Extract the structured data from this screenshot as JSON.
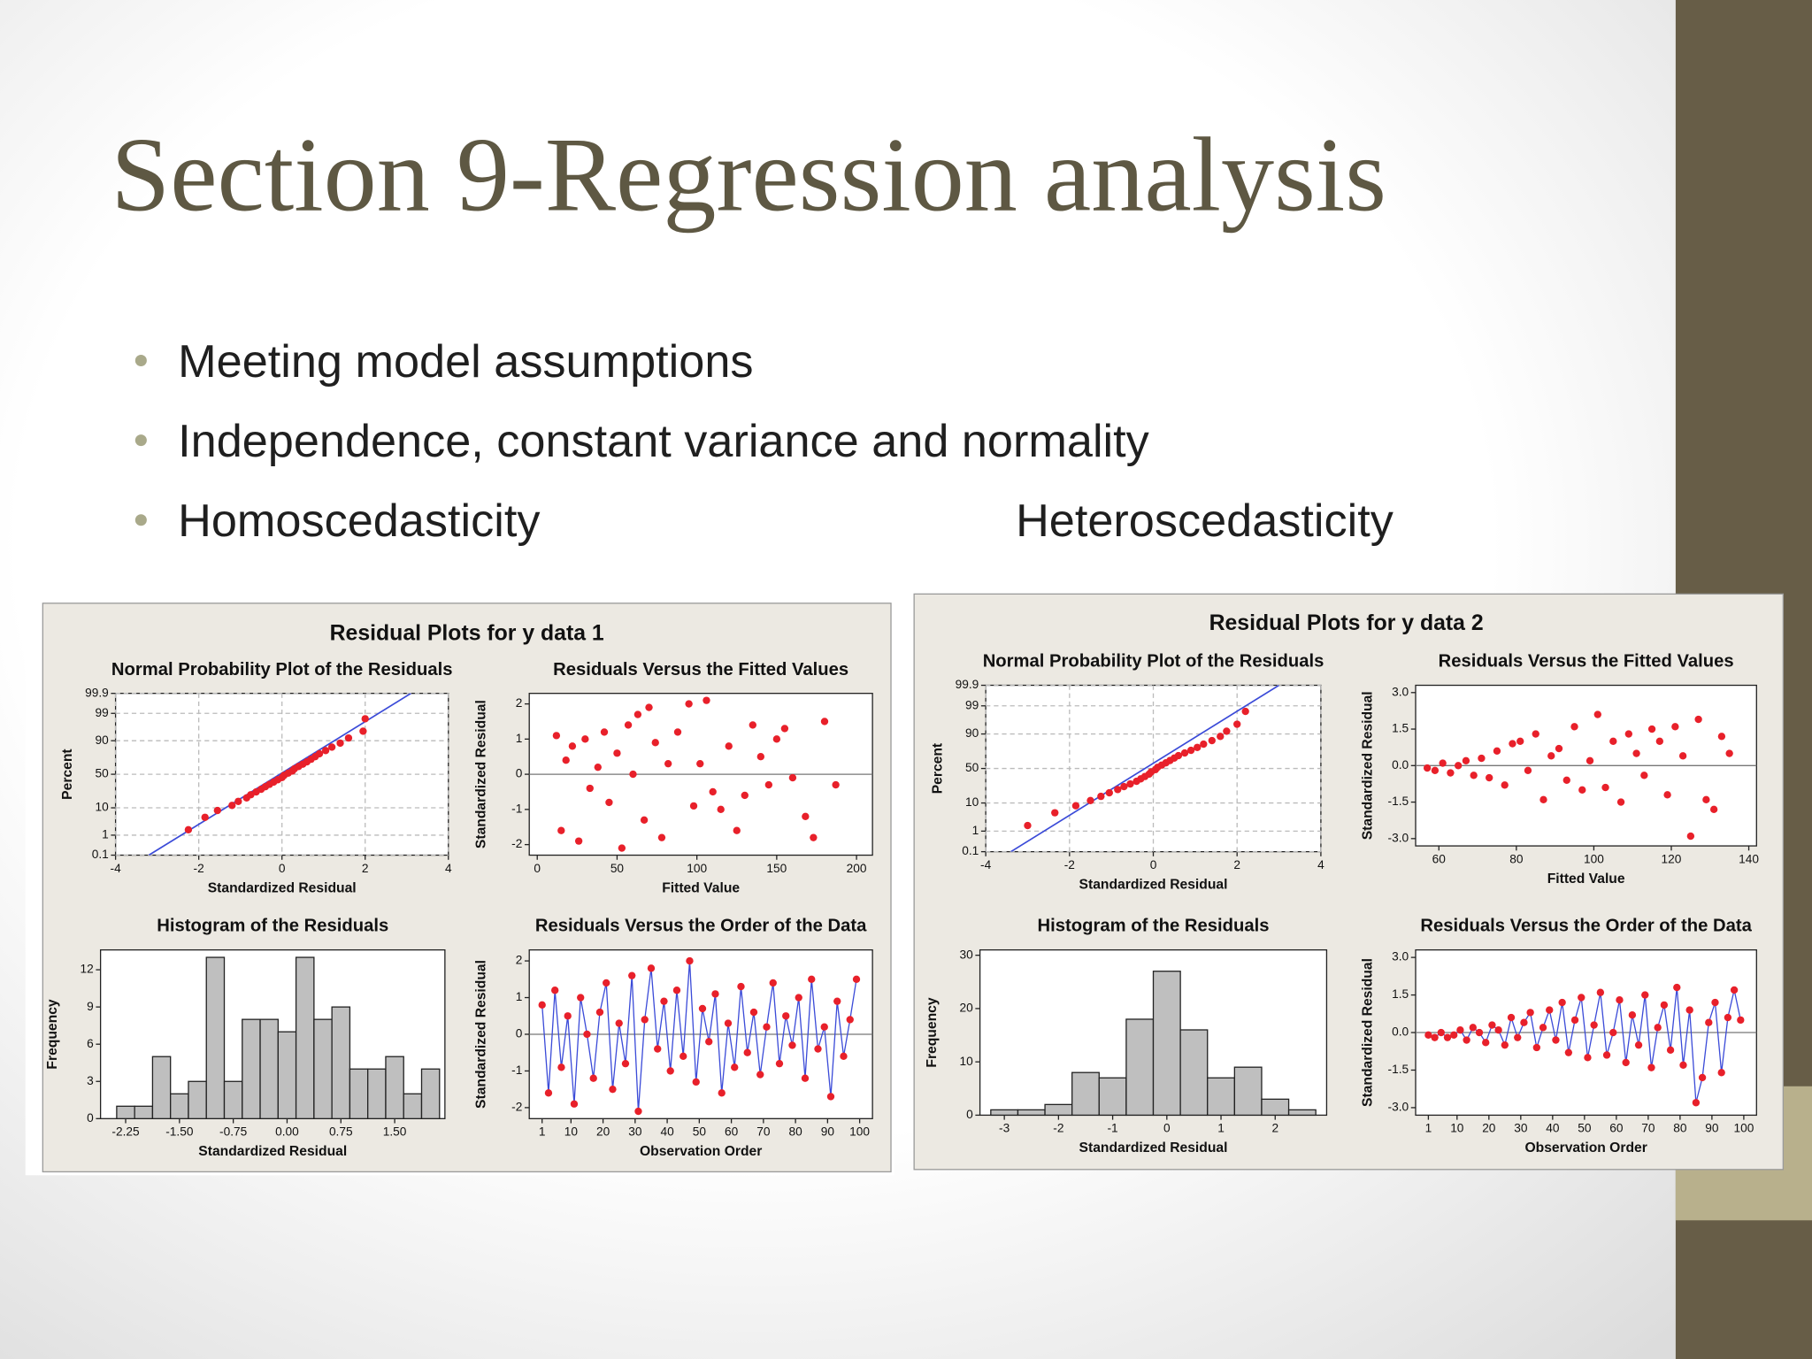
{
  "slide": {
    "title": "Section 9-Regression analysis",
    "bullets": [
      "Meeting model assumptions",
      "Independence, constant variance and normality",
      "Homoscedasticity"
    ],
    "right_label": "Heteroscedasticity"
  },
  "panels": [
    {
      "title": "Residual Plots for y data 1"
    },
    {
      "title": "Residual Plots for y data 2"
    }
  ],
  "chart_data": [
    {
      "type": "scatter",
      "title": "Normal Probability Plot of the Residuals",
      "xlabel": "Standardized Residual",
      "ylabel": "Percent",
      "yscale": "probability",
      "grid": true,
      "color": "#e8202a",
      "xlim": [
        -4,
        4
      ],
      "xticks": [
        -4,
        -2,
        0,
        2,
        4
      ],
      "ylim": [
        0.1,
        99.9
      ],
      "yticks": [
        0.1,
        1,
        10,
        50,
        90,
        99,
        99.9
      ],
      "fit_line": {
        "color": "#3b4bd8",
        "x": [
          -3.2,
          3.1
        ],
        "y": [
          0.1,
          99.9
        ]
      },
      "x": [
        -2.25,
        -1.85,
        -1.55,
        -1.2,
        -1.05,
        -0.85,
        -0.75,
        -0.62,
        -0.5,
        -0.4,
        -0.3,
        -0.2,
        -0.1,
        0,
        0.05,
        0.15,
        0.25,
        0.3,
        0.4,
        0.5,
        0.6,
        0.7,
        0.8,
        0.9,
        1.05,
        1.2,
        1.4,
        1.6,
        1.95,
        2.0
      ],
      "values": [
        1.7,
        5,
        8.3,
        11.7,
        15,
        18.3,
        21.7,
        25,
        28.3,
        31.7,
        35,
        38.3,
        41.7,
        45,
        48.3,
        51.7,
        55,
        58.3,
        61.7,
        65,
        68.3,
        71.7,
        75,
        78.3,
        81.7,
        85,
        88.3,
        91.7,
        95,
        98.3
      ]
    },
    {
      "type": "scatter",
      "title": "Residuals Versus the Fitted Values",
      "xlabel": "Fitted Value",
      "ylabel": "Standardized Residual",
      "refline": 0,
      "color": "#e8202a",
      "xlim": [
        -5,
        210
      ],
      "xticks": [
        0,
        50,
        100,
        150,
        200
      ],
      "ylim": [
        -2.3,
        2.3
      ],
      "yticks": [
        -2,
        -1,
        0,
        1,
        2
      ],
      "x": [
        12,
        15,
        18,
        22,
        26,
        30,
        33,
        38,
        42,
        45,
        50,
        53,
        57,
        60,
        63,
        67,
        70,
        74,
        78,
        82,
        88,
        95,
        98,
        102,
        106,
        110,
        115,
        120,
        125,
        130,
        135,
        140,
        145,
        150,
        155,
        160,
        168,
        173,
        180,
        187
      ],
      "values": [
        1.1,
        -1.6,
        0.4,
        0.8,
        -1.9,
        1.0,
        -0.4,
        0.2,
        1.2,
        -0.8,
        0.6,
        -2.1,
        1.4,
        0.0,
        1.7,
        -1.3,
        1.9,
        0.9,
        -1.8,
        0.3,
        1.2,
        2.0,
        -0.9,
        0.3,
        2.1,
        -0.5,
        -1.0,
        0.8,
        -1.6,
        -0.6,
        1.4,
        0.5,
        -0.3,
        1.0,
        1.3,
        -0.1,
        -1.2,
        -1.8,
        1.5,
        -0.3
      ]
    },
    {
      "type": "histogram",
      "title": "Histogram of the Residuals",
      "xlabel": "Standardized Residual",
      "ylabel": "Frequency",
      "color": "#bfbfbf",
      "xlim": [
        -2.6,
        2.2
      ],
      "xticks": [
        {
          "value": -2.25,
          "label": "-2.25"
        },
        {
          "value": -1.5,
          "label": "-1.50"
        },
        {
          "value": -0.75,
          "label": "-0.75"
        },
        {
          "value": 0,
          "label": "0.00"
        },
        {
          "value": 0.75,
          "label": "0.75"
        },
        {
          "value": 1.5,
          "label": "1.50"
        }
      ],
      "ylim": [
        0,
        13.6
      ],
      "yticks": [
        0,
        3,
        6,
        9,
        12
      ],
      "bins": [
        -2.375,
        -2.125,
        -1.875,
        -1.625,
        -1.375,
        -1.125,
        -0.875,
        -0.625,
        -0.375,
        -0.125,
        0.125,
        0.375,
        0.625,
        0.875,
        1.125,
        1.375,
        1.625,
        1.875,
        2.125
      ],
      "values": [
        1,
        1,
        5,
        2,
        3,
        13,
        3,
        8,
        8,
        7,
        13,
        8,
        9,
        4,
        4,
        5,
        2,
        4
      ]
    },
    {
      "type": "line",
      "title": "Residuals Versus the Order of the Data",
      "xlabel": "Observation Order",
      "ylabel": "Standardized Residual",
      "refline": 0,
      "color": "#e8202a",
      "line_color": "#3b4bd8",
      "xlim": [
        -3,
        104
      ],
      "xticks": [
        1,
        10,
        20,
        30,
        40,
        50,
        60,
        70,
        80,
        90,
        100
      ],
      "ylim": [
        -2.3,
        2.3
      ],
      "yticks": [
        -2,
        -1,
        0,
        1,
        2
      ],
      "x": [
        1,
        3,
        5,
        7,
        9,
        11,
        13,
        15,
        17,
        19,
        21,
        23,
        25,
        27,
        29,
        31,
        33,
        35,
        37,
        39,
        41,
        43,
        45,
        47,
        49,
        51,
        53,
        55,
        57,
        59,
        61,
        63,
        65,
        67,
        69,
        71,
        73,
        75,
        77,
        79,
        81,
        83,
        85,
        87,
        89,
        91,
        93,
        95,
        97,
        99
      ],
      "values": [
        0.8,
        -1.6,
        1.2,
        -0.9,
        0.5,
        -1.9,
        1.0,
        0.0,
        -1.2,
        0.6,
        1.4,
        -1.5,
        0.3,
        -0.8,
        1.6,
        -2.1,
        0.4,
        1.8,
        -0.4,
        0.9,
        -1.0,
        1.2,
        -0.6,
        2.0,
        -1.3,
        0.7,
        -0.2,
        1.1,
        -1.6,
        0.3,
        -0.9,
        1.3,
        -0.5,
        0.6,
        -1.1,
        0.2,
        1.4,
        -0.8,
        0.5,
        -0.3,
        1.0,
        -1.2,
        1.5,
        -0.4,
        0.2,
        -1.7,
        0.9,
        -0.6,
        0.4,
        1.5
      ]
    },
    {
      "type": "scatter",
      "title": "Normal Probability Plot of the Residuals",
      "xlabel": "Standardized Residual",
      "ylabel": "Percent",
      "yscale": "probability",
      "grid": true,
      "color": "#e8202a",
      "xlim": [
        -4,
        4
      ],
      "xticks": [
        -4,
        -2,
        0,
        2,
        4
      ],
      "ylim": [
        0.1,
        99.9
      ],
      "yticks": [
        0.1,
        1,
        10,
        50,
        90,
        99,
        99.9
      ],
      "fit_line": {
        "color": "#3b4bd8",
        "x": [
          -3.4,
          3.0
        ],
        "y": [
          0.1,
          99.9
        ]
      },
      "x": [
        -3.0,
        -2.35,
        -1.85,
        -1.5,
        -1.25,
        -1.05,
        -0.85,
        -0.7,
        -0.55,
        -0.4,
        -0.3,
        -0.2,
        -0.1,
        -0.05,
        0.05,
        0.1,
        0.2,
        0.3,
        0.4,
        0.5,
        0.6,
        0.75,
        0.9,
        1.05,
        1.2,
        1.4,
        1.6,
        1.75,
        2.0,
        2.2
      ],
      "values": [
        1.7,
        5,
        8.3,
        11.7,
        15,
        18.3,
        21.7,
        25,
        28.3,
        31.7,
        35,
        38.3,
        41.7,
        45,
        48.3,
        51.7,
        55,
        58.3,
        61.7,
        65,
        68.3,
        71.7,
        75,
        78.3,
        81.7,
        85,
        88.3,
        91.7,
        95,
        98.3
      ]
    },
    {
      "type": "scatter",
      "title": "Residuals Versus the Fitted Values",
      "xlabel": "Fitted Value",
      "ylabel": "Standardized Residual",
      "refline": 0,
      "color": "#e8202a",
      "xlim": [
        54,
        142
      ],
      "xticks": [
        60,
        80,
        100,
        120,
        140
      ],
      "ylim": [
        -3.3,
        3.3
      ],
      "yticks": [
        {
          "value": -3,
          "label": "-3.0"
        },
        {
          "value": -1.5,
          "label": "-1.5"
        },
        {
          "value": 0,
          "label": "0.0"
        },
        {
          "value": 1.5,
          "label": "1.5"
        },
        {
          "value": 3,
          "label": "3.0"
        }
      ],
      "x": [
        57,
        59,
        61,
        63,
        65,
        67,
        69,
        71,
        73,
        75,
        77,
        79,
        81,
        83,
        85,
        87,
        89,
        91,
        93,
        95,
        97,
        99,
        101,
        103,
        105,
        107,
        109,
        111,
        113,
        115,
        117,
        119,
        121,
        123,
        125,
        127,
        129,
        131,
        133,
        135
      ],
      "values": [
        -0.1,
        -0.2,
        0.1,
        -0.3,
        0.0,
        0.2,
        -0.4,
        0.3,
        -0.5,
        0.6,
        -0.8,
        0.9,
        1.0,
        -0.2,
        1.3,
        -1.4,
        0.4,
        0.7,
        -0.6,
        1.6,
        -1.0,
        0.2,
        2.1,
        -0.9,
        1.0,
        -1.5,
        1.3,
        0.5,
        -0.4,
        1.5,
        1.0,
        -1.2,
        1.6,
        0.4,
        -2.9,
        1.9,
        -1.4,
        -1.8,
        1.2,
        0.5
      ]
    },
    {
      "type": "histogram",
      "title": "Histogram of the Residuals",
      "xlabel": "Standardized Residual",
      "ylabel": "Frequency",
      "color": "#bfbfbf",
      "xlim": [
        -3.45,
        2.95
      ],
      "xticks": [
        -3,
        -2,
        -1,
        0,
        1,
        2
      ],
      "ylim": [
        0,
        31
      ],
      "yticks": [
        0,
        10,
        20,
        30
      ],
      "bins": [
        -3.25,
        -2.75,
        -2.25,
        -1.75,
        -1.25,
        -0.75,
        -0.25,
        0.25,
        0.75,
        1.25,
        1.75,
        2.25,
        2.75
      ],
      "values": [
        1,
        1,
        2,
        8,
        7,
        18,
        27,
        16,
        7,
        9,
        3,
        1
      ]
    },
    {
      "type": "line",
      "title": "Residuals Versus the Order of the Data",
      "xlabel": "Observation Order",
      "ylabel": "Standardized Residual",
      "refline": 0,
      "color": "#e8202a",
      "line_color": "#3b4bd8",
      "xlim": [
        -3,
        104
      ],
      "xticks": [
        1,
        10,
        20,
        30,
        40,
        50,
        60,
        70,
        80,
        90,
        100
      ],
      "ylim": [
        -3.3,
        3.3
      ],
      "yticks": [
        {
          "value": -3,
          "label": "-3.0"
        },
        {
          "value": -1.5,
          "label": "-1.5"
        },
        {
          "value": 0,
          "label": "0.0"
        },
        {
          "value": 1.5,
          "label": "1.5"
        },
        {
          "value": 3,
          "label": "3.0"
        }
      ],
      "x": [
        1,
        3,
        5,
        7,
        9,
        11,
        13,
        15,
        17,
        19,
        21,
        23,
        25,
        27,
        29,
        31,
        33,
        35,
        37,
        39,
        41,
        43,
        45,
        47,
        49,
        51,
        53,
        55,
        57,
        59,
        61,
        63,
        65,
        67,
        69,
        71,
        73,
        75,
        77,
        79,
        81,
        83,
        85,
        87,
        89,
        91,
        93,
        95,
        97,
        99
      ],
      "values": [
        -0.1,
        -0.2,
        0.0,
        -0.2,
        -0.1,
        0.1,
        -0.3,
        0.2,
        0.0,
        -0.4,
        0.3,
        0.1,
        -0.5,
        0.6,
        -0.2,
        0.4,
        0.8,
        -0.6,
        0.2,
        0.9,
        -0.3,
        1.2,
        -0.8,
        0.5,
        1.4,
        -1.0,
        0.3,
        1.6,
        -0.9,
        0.0,
        1.3,
        -1.2,
        0.7,
        -0.5,
        1.5,
        -1.4,
        0.2,
        1.1,
        -0.7,
        1.8,
        -1.3,
        0.9,
        -2.8,
        -1.8,
        0.4,
        1.2,
        -1.6,
        0.6,
        1.7,
        0.5
      ]
    }
  ]
}
